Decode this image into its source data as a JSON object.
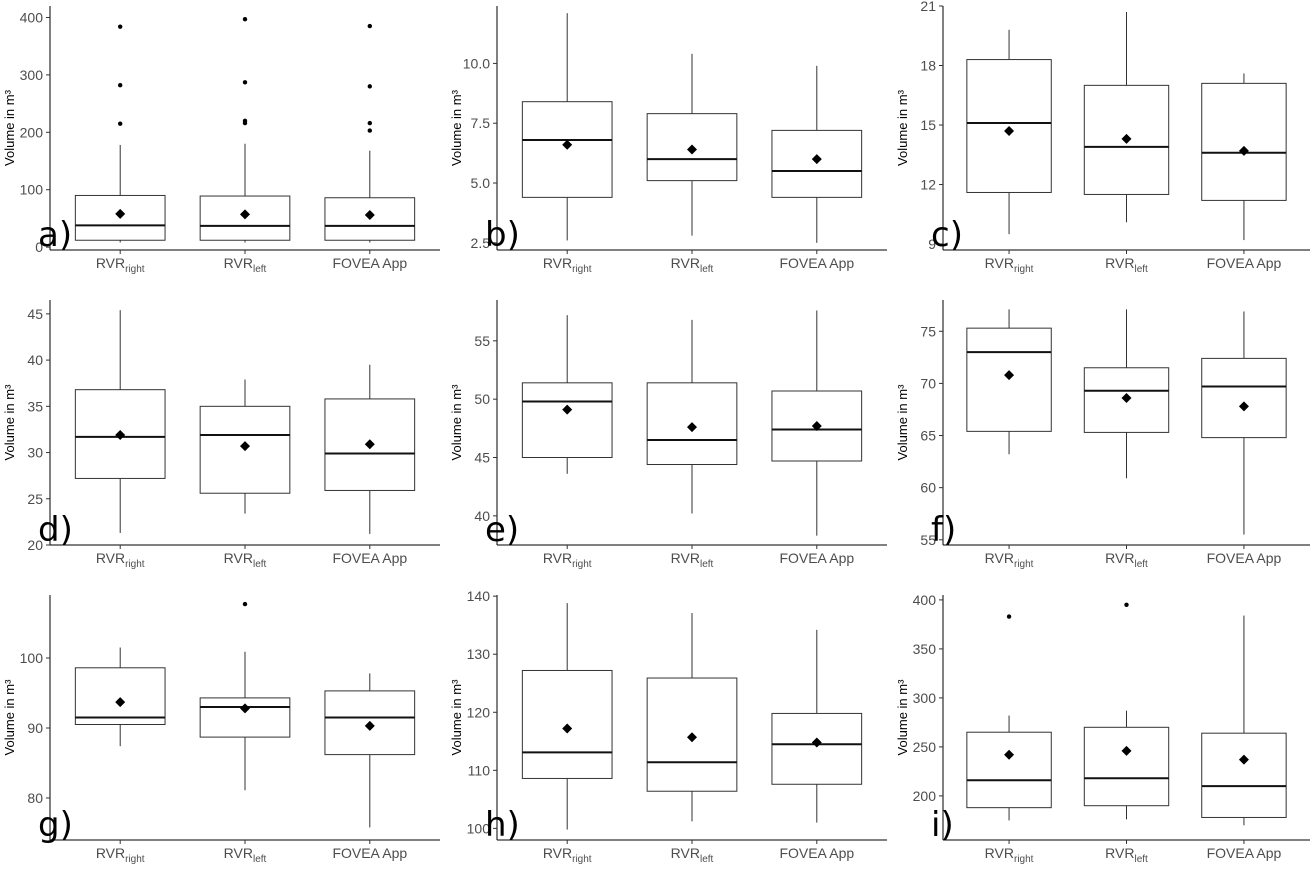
{
  "chart_data": [
    {
      "id": "a",
      "type": "boxplot",
      "panel_label": "a)",
      "ylabel": "Volume in m³",
      "ylim": [
        -5,
        420
      ],
      "yticks": [
        0,
        100,
        200,
        300,
        400
      ],
      "ytick_labels": [
        "0",
        "100",
        "200",
        "300",
        "400"
      ],
      "categories": [
        [
          "RVR",
          "right"
        ],
        [
          "RVR",
          "left"
        ],
        [
          "FOVEA App",
          ""
        ]
      ],
      "boxes": [
        {
          "whisker_low": 8,
          "q1": 12,
          "median": 38,
          "q3": 90,
          "whisker_high": 178,
          "mean": 58,
          "outliers": [
            215,
            282,
            384
          ]
        },
        {
          "whisker_low": 8,
          "q1": 12,
          "median": 37,
          "q3": 89,
          "whisker_high": 180,
          "mean": 57,
          "outliers": [
            216,
            220,
            287,
            397
          ]
        },
        {
          "whisker_low": 8,
          "q1": 12,
          "median": 37,
          "q3": 86,
          "whisker_high": 168,
          "mean": 56,
          "outliers": [
            203,
            216,
            280,
            385
          ]
        }
      ]
    },
    {
      "id": "b",
      "type": "boxplot",
      "panel_label": "b)",
      "ylabel": "Volume in m³",
      "ylim": [
        2.2,
        12.4
      ],
      "yticks": [
        2.5,
        5.0,
        7.5,
        10.0
      ],
      "ytick_labels": [
        "2.5",
        "5.0",
        "7.5",
        "10.0"
      ],
      "categories": [
        [
          "RVR",
          "right"
        ],
        [
          "RVR",
          "left"
        ],
        [
          "FOVEA App",
          ""
        ]
      ],
      "boxes": [
        {
          "whisker_low": 2.6,
          "q1": 4.4,
          "median": 6.8,
          "q3": 8.4,
          "whisker_high": 12.1,
          "mean": 6.6,
          "outliers": []
        },
        {
          "whisker_low": 2.8,
          "q1": 5.1,
          "median": 6.0,
          "q3": 7.9,
          "whisker_high": 10.4,
          "mean": 6.4,
          "outliers": []
        },
        {
          "whisker_low": 2.5,
          "q1": 4.4,
          "median": 5.5,
          "q3": 7.2,
          "whisker_high": 9.9,
          "mean": 6.0,
          "outliers": []
        }
      ]
    },
    {
      "id": "c",
      "type": "boxplot",
      "panel_label": "c)",
      "ylabel": "Volume in m³",
      "ylim": [
        8.7,
        21.0
      ],
      "yticks": [
        9,
        12,
        15,
        18,
        21
      ],
      "ytick_labels": [
        "9",
        "12",
        "15",
        "18",
        "21"
      ],
      "categories": [
        [
          "RVR",
          "right"
        ],
        [
          "RVR",
          "left"
        ],
        [
          "FOVEA App",
          ""
        ]
      ],
      "boxes": [
        {
          "whisker_low": 9.5,
          "q1": 11.6,
          "median": 15.1,
          "q3": 18.3,
          "whisker_high": 19.8,
          "mean": 14.7,
          "outliers": []
        },
        {
          "whisker_low": 10.1,
          "q1": 11.5,
          "median": 13.9,
          "q3": 17.0,
          "whisker_high": 20.7,
          "mean": 14.3,
          "outliers": []
        },
        {
          "whisker_low": 9.2,
          "q1": 11.2,
          "median": 13.6,
          "q3": 17.1,
          "whisker_high": 17.6,
          "mean": 13.7,
          "outliers": []
        }
      ]
    },
    {
      "id": "d",
      "type": "boxplot",
      "panel_label": "d)",
      "ylabel": "Volume in m³",
      "ylim": [
        20,
        46.5
      ],
      "yticks": [
        20,
        25,
        30,
        35,
        40,
        45
      ],
      "ytick_labels": [
        "20",
        "25",
        "30",
        "35",
        "40",
        "45"
      ],
      "categories": [
        [
          "RVR",
          "right"
        ],
        [
          "RVR",
          "left"
        ],
        [
          "FOVEA App",
          ""
        ]
      ],
      "boxes": [
        {
          "whisker_low": 21.3,
          "q1": 27.2,
          "median": 31.7,
          "q3": 36.8,
          "whisker_high": 45.4,
          "mean": 31.9,
          "outliers": []
        },
        {
          "whisker_low": 23.4,
          "q1": 25.6,
          "median": 31.9,
          "q3": 35.0,
          "whisker_high": 37.9,
          "mean": 30.7,
          "outliers": []
        },
        {
          "whisker_low": 21.2,
          "q1": 25.9,
          "median": 29.9,
          "q3": 35.8,
          "whisker_high": 39.5,
          "mean": 30.9,
          "outliers": []
        }
      ]
    },
    {
      "id": "e",
      "type": "boxplot",
      "panel_label": "e)",
      "ylabel": "Volume in m³",
      "ylim": [
        37.5,
        58.5
      ],
      "yticks": [
        40,
        45,
        50,
        55
      ],
      "ytick_labels": [
        "40",
        "45",
        "50",
        "55"
      ],
      "categories": [
        [
          "RVR",
          "right"
        ],
        [
          "RVR",
          "left"
        ],
        [
          "FOVEA App",
          ""
        ]
      ],
      "boxes": [
        {
          "whisker_low": 43.6,
          "q1": 45.0,
          "median": 49.8,
          "q3": 51.4,
          "whisker_high": 57.2,
          "mean": 49.1,
          "outliers": []
        },
        {
          "whisker_low": 40.2,
          "q1": 44.4,
          "median": 46.5,
          "q3": 51.4,
          "whisker_high": 56.8,
          "mean": 47.6,
          "outliers": []
        },
        {
          "whisker_low": 38.3,
          "q1": 44.7,
          "median": 47.4,
          "q3": 50.7,
          "whisker_high": 57.6,
          "mean": 47.7,
          "outliers": []
        }
      ]
    },
    {
      "id": "f",
      "type": "boxplot",
      "panel_label": "f)",
      "ylabel": "Volume in m³",
      "ylim": [
        54.5,
        78
      ],
      "yticks": [
        55,
        60,
        65,
        70,
        75
      ],
      "ytick_labels": [
        "55",
        "60",
        "65",
        "70",
        "75"
      ],
      "categories": [
        [
          "RVR",
          "right"
        ],
        [
          "RVR",
          "left"
        ],
        [
          "FOVEA App",
          ""
        ]
      ],
      "boxes": [
        {
          "whisker_low": 63.2,
          "q1": 65.4,
          "median": 73.0,
          "q3": 75.3,
          "whisker_high": 77.1,
          "mean": 70.8,
          "outliers": []
        },
        {
          "whisker_low": 60.9,
          "q1": 65.3,
          "median": 69.3,
          "q3": 71.5,
          "whisker_high": 77.1,
          "mean": 68.6,
          "outliers": []
        },
        {
          "whisker_low": 55.5,
          "q1": 64.8,
          "median": 69.7,
          "q3": 72.4,
          "whisker_high": 76.9,
          "mean": 67.8,
          "outliers": []
        }
      ]
    },
    {
      "id": "g",
      "type": "boxplot",
      "panel_label": "g)",
      "ylabel": "Volume in m³",
      "ylim": [
        74,
        109
      ],
      "yticks": [
        80,
        90,
        100
      ],
      "ytick_labels": [
        "80",
        "90",
        "100"
      ],
      "categories": [
        [
          "RVR",
          "right"
        ],
        [
          "RVR",
          "left"
        ],
        [
          "FOVEA App",
          ""
        ]
      ],
      "boxes": [
        {
          "whisker_low": 87.4,
          "q1": 90.5,
          "median": 91.5,
          "q3": 98.6,
          "whisker_high": 101.5,
          "mean": 93.7,
          "outliers": []
        },
        {
          "whisker_low": 81.1,
          "q1": 88.7,
          "median": 93.0,
          "q3": 94.3,
          "whisker_high": 100.9,
          "mean": 92.8,
          "outliers": [
            107.7
          ]
        },
        {
          "whisker_low": 75.8,
          "q1": 86.2,
          "median": 91.5,
          "q3": 95.3,
          "whisker_high": 97.8,
          "mean": 90.3,
          "outliers": []
        }
      ]
    },
    {
      "id": "h",
      "type": "boxplot",
      "panel_label": "h)",
      "ylabel": "Volume in m³",
      "ylim": [
        98,
        140.2
      ],
      "yticks": [
        100,
        110,
        120,
        130,
        140
      ],
      "ytick_labels": [
        "100",
        "110",
        "120",
        "130",
        "140"
      ],
      "categories": [
        [
          "RVR",
          "right"
        ],
        [
          "RVR",
          "left"
        ],
        [
          "FOVEA App",
          ""
        ]
      ],
      "boxes": [
        {
          "whisker_low": 99.8,
          "q1": 108.6,
          "median": 113.1,
          "q3": 127.2,
          "whisker_high": 138.8,
          "mean": 117.2,
          "outliers": []
        },
        {
          "whisker_low": 101.2,
          "q1": 106.4,
          "median": 111.4,
          "q3": 125.9,
          "whisker_high": 137.1,
          "mean": 115.7,
          "outliers": []
        },
        {
          "whisker_low": 101.0,
          "q1": 107.6,
          "median": 114.5,
          "q3": 119.8,
          "whisker_high": 134.2,
          "mean": 114.8,
          "outliers": []
        }
      ]
    },
    {
      "id": "i",
      "type": "boxplot",
      "panel_label": "i)",
      "ylabel": "Volume in m³",
      "ylim": [
        155,
        405
      ],
      "yticks": [
        200,
        250,
        300,
        350,
        400
      ],
      "ytick_labels": [
        "200",
        "250",
        "300",
        "350",
        "400"
      ],
      "categories": [
        [
          "RVR",
          "right"
        ],
        [
          "RVR",
          "left"
        ],
        [
          "FOVEA App",
          ""
        ]
      ],
      "boxes": [
        {
          "whisker_low": 175,
          "q1": 188,
          "median": 216,
          "q3": 265,
          "whisker_high": 282,
          "mean": 242,
          "outliers": [
            383
          ]
        },
        {
          "whisker_low": 176,
          "q1": 190,
          "median": 218,
          "q3": 270,
          "whisker_high": 287,
          "mean": 246,
          "outliers": [
            395
          ]
        },
        {
          "whisker_low": 170,
          "q1": 178,
          "median": 210,
          "q3": 264,
          "whisker_high": 384,
          "mean": 237,
          "outliers": []
        }
      ]
    }
  ]
}
